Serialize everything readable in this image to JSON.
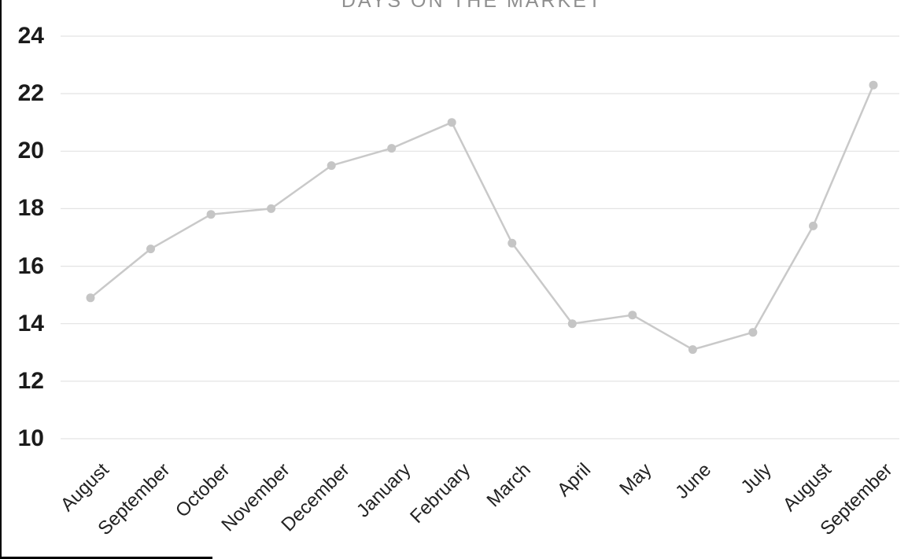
{
  "chart_data": {
    "type": "line",
    "title": "DAYS ON THE MARKET",
    "categories": [
      "August",
      "September",
      "October",
      "November",
      "December",
      "January",
      "February",
      "March",
      "April",
      "May",
      "June",
      "July",
      "August",
      "September"
    ],
    "values": [
      14.9,
      16.6,
      17.8,
      18.0,
      19.5,
      20.1,
      21.0,
      16.8,
      14.0,
      14.3,
      13.1,
      13.7,
      17.4,
      22.3
    ],
    "yticks": [
      10,
      12,
      14,
      16,
      18,
      20,
      22,
      24
    ],
    "ytick_labels": [
      "10",
      "12",
      "14",
      "16",
      "18",
      "20",
      "22",
      "24"
    ],
    "ylim": [
      10,
      24
    ],
    "xlabel": "",
    "ylabel": "",
    "legend": "none",
    "grid": "horizontal",
    "colors": {
      "line": "#c9c9c9",
      "marker": "#c5c5c5",
      "gridline": "#e3e3e3",
      "y_axis_labels": "#1b1b1b",
      "x_axis_labels": "#222222",
      "title": "#8f8f8f",
      "background": "#ffffff",
      "frame": "#000000"
    }
  }
}
